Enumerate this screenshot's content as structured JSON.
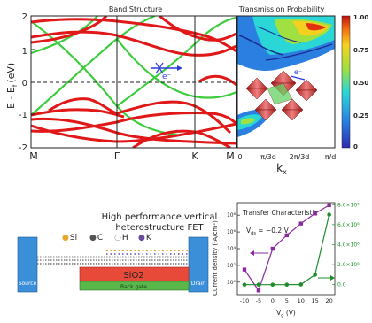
{
  "band": {
    "title": "Band Structure",
    "ylabel": "E - E",
    "ylabel_sub": "f",
    "ylabel_unit": "(eV)",
    "yticks": [
      "2",
      "1",
      "0",
      "-1",
      "-2"
    ],
    "xticks": [
      "M",
      "Γ",
      "K",
      "M"
    ],
    "electron_label": "e⁻"
  },
  "transmission": {
    "title": "Transmission Probability",
    "xticks": [
      "0",
      "π/3d",
      "2π/3d",
      "π/d"
    ],
    "xlabel": "k",
    "xlabel_sub": "x",
    "colorbar_ticks": [
      "1.00",
      "0.75",
      "0.50",
      "0.25",
      "0"
    ],
    "cone_label": "e⁻"
  },
  "fet": {
    "title_line1": "High performance vertical",
    "title_line2": "heterostructure FET",
    "legend": [
      {
        "symbol": "●",
        "label": "Si",
        "color": "#e6a72a"
      },
      {
        "symbol": "●",
        "label": "C",
        "color": "#555555"
      },
      {
        "symbol": "○",
        "label": "H",
        "color": "#999999"
      },
      {
        "symbol": "●",
        "label": "K",
        "color": "#6b4aa0"
      }
    ],
    "source_label": "Source",
    "drain_label": "Drain",
    "oxide_label": "SiO2",
    "gate_label": "Back gate"
  },
  "chart_data": {
    "type": "line",
    "title": "Transfer Characteristic",
    "annotation": "V_ds = −0.2 V",
    "annotation_main": "V",
    "annotation_sub": "ds",
    "annotation_rest": " = −0.2 V",
    "xlabel": "V_g (V)",
    "xlabel_main": "V",
    "xlabel_sub": "g",
    "xlabel_rest": " (V)",
    "ylabel": "Current density (-A/cm²)",
    "x": [
      -10,
      -5,
      0,
      5,
      10,
      15,
      20
    ],
    "xticks": [
      "-10",
      "-5",
      "0",
      "5",
      "10",
      "15",
      "20"
    ],
    "left_yticks": [
      "10⁸",
      "10⁶",
      "10⁴",
      "10²",
      "10⁰"
    ],
    "right_yticks": [
      "8.0×10⁶",
      "6.0×10⁶",
      "4.0×10⁶",
      "2.0×10⁶",
      "0.0"
    ],
    "left_ylim": [
      -1.5,
      9.5
    ],
    "right_ylim": [
      -1000000,
      8200000
    ],
    "xlim": [
      -12.5,
      22
    ],
    "series": [
      {
        "axis": "left-log",
        "color": "#8a2aa0",
        "values": [
          1.5,
          -1.0,
          4.0,
          5.6,
          7.0,
          8.2,
          9.2
        ]
      },
      {
        "axis": "right-linear",
        "color": "#1e8c2a",
        "values": [
          0,
          0,
          0,
          0,
          20000,
          1000000,
          7000000
        ]
      }
    ]
  }
}
